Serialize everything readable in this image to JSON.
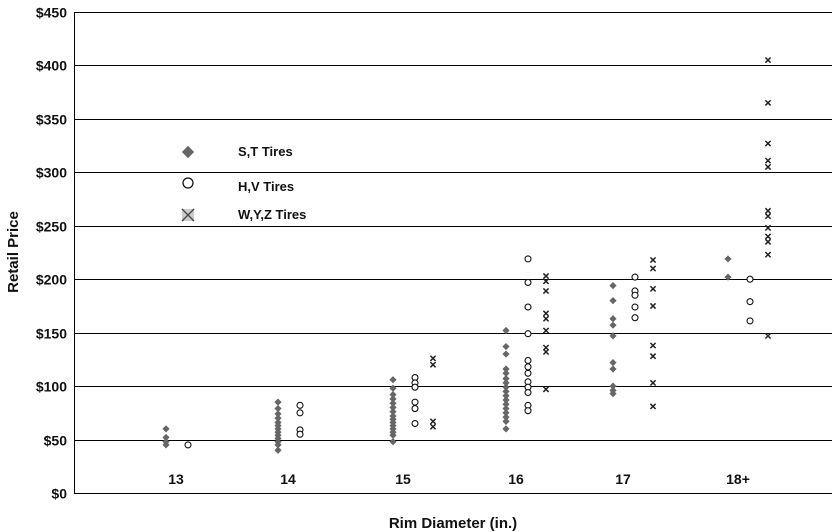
{
  "chart_data": {
    "type": "scatter",
    "title": "",
    "xlabel": "Rim Diameter (in.)",
    "ylabel": "Retail Price",
    "ylim": [
      0,
      450
    ],
    "yticks": [
      0,
      50,
      100,
      150,
      200,
      250,
      300,
      350,
      400,
      450
    ],
    "ytick_labels": [
      "$0",
      "$50",
      "$100",
      "$150",
      "$200",
      "$250",
      "$300",
      "$350",
      "$400",
      "$450"
    ],
    "categories": [
      "13",
      "14",
      "15",
      "16",
      "17",
      "18+"
    ],
    "grid": "horizontal",
    "legend_position": "upper-left",
    "colors": {
      "grid": "#000000",
      "diamond": "#666666",
      "circle": "#111111",
      "cross": "#222222"
    },
    "series": [
      {
        "name": "S,T Tires",
        "marker": "diamond",
        "points": [
          [
            "13",
            60
          ],
          [
            "13",
            52
          ],
          [
            "13",
            48
          ],
          [
            "13",
            45
          ],
          [
            "14",
            85
          ],
          [
            "14",
            79
          ],
          [
            "14",
            74
          ],
          [
            "14",
            70
          ],
          [
            "14",
            66
          ],
          [
            "14",
            63
          ],
          [
            "14",
            60
          ],
          [
            "14",
            57
          ],
          [
            "14",
            54
          ],
          [
            "14",
            51
          ],
          [
            "14",
            48
          ],
          [
            "14",
            45
          ],
          [
            "14",
            40
          ],
          [
            "15",
            106
          ],
          [
            "15",
            98
          ],
          [
            "15",
            92
          ],
          [
            "15",
            88
          ],
          [
            "15",
            84
          ],
          [
            "15",
            80
          ],
          [
            "15",
            76
          ],
          [
            "15",
            72
          ],
          [
            "15",
            69
          ],
          [
            "15",
            66
          ],
          [
            "15",
            63
          ],
          [
            "15",
            60
          ],
          [
            "15",
            57
          ],
          [
            "15",
            54
          ],
          [
            "15",
            48
          ],
          [
            "16",
            152
          ],
          [
            "16",
            137
          ],
          [
            "16",
            130
          ],
          [
            "16",
            116
          ],
          [
            "16",
            112
          ],
          [
            "16",
            107
          ],
          [
            "16",
            103
          ],
          [
            "16",
            99
          ],
          [
            "16",
            95
          ],
          [
            "16",
            91
          ],
          [
            "16",
            87
          ],
          [
            "16",
            83
          ],
          [
            "16",
            79
          ],
          [
            "16",
            75
          ],
          [
            "16",
            71
          ],
          [
            "16",
            67
          ],
          [
            "16",
            60
          ],
          [
            "17",
            194
          ],
          [
            "17",
            180
          ],
          [
            "17",
            163
          ],
          [
            "17",
            157
          ],
          [
            "17",
            147
          ],
          [
            "17",
            122
          ],
          [
            "17",
            116
          ],
          [
            "17",
            100
          ],
          [
            "17",
            96
          ],
          [
            "17",
            93
          ],
          [
            "18+",
            219
          ],
          [
            "18+",
            202
          ]
        ]
      },
      {
        "name": "H,V Tires",
        "marker": "circle",
        "points": [
          [
            "13",
            45
          ],
          [
            "14",
            82
          ],
          [
            "14",
            75
          ],
          [
            "14",
            59
          ],
          [
            "14",
            55
          ],
          [
            "15",
            108
          ],
          [
            "15",
            103
          ],
          [
            "15",
            99
          ],
          [
            "15",
            85
          ],
          [
            "15",
            79
          ],
          [
            "15",
            65
          ],
          [
            "16",
            219
          ],
          [
            "16",
            197
          ],
          [
            "16",
            174
          ],
          [
            "16",
            149
          ],
          [
            "16",
            124
          ],
          [
            "16",
            118
          ],
          [
            "16",
            112
          ],
          [
            "16",
            104
          ],
          [
            "16",
            99
          ],
          [
            "16",
            94
          ],
          [
            "16",
            82
          ],
          [
            "16",
            77
          ],
          [
            "17",
            202
          ],
          [
            "17",
            189
          ],
          [
            "17",
            185
          ],
          [
            "17",
            174
          ],
          [
            "17",
            164
          ],
          [
            "18+",
            200
          ],
          [
            "18+",
            179
          ],
          [
            "18+",
            161
          ]
        ]
      },
      {
        "name": "W,Y,Z Tires",
        "marker": "cross",
        "points": [
          [
            "15",
            126
          ],
          [
            "15",
            120
          ],
          [
            "15",
            67
          ],
          [
            "15",
            62
          ],
          [
            "16",
            203
          ],
          [
            "16",
            198
          ],
          [
            "16",
            189
          ],
          [
            "16",
            168
          ],
          [
            "16",
            163
          ],
          [
            "16",
            152
          ],
          [
            "16",
            136
          ],
          [
            "16",
            132
          ],
          [
            "16",
            97
          ],
          [
            "17",
            218
          ],
          [
            "17",
            210
          ],
          [
            "17",
            191
          ],
          [
            "17",
            175
          ],
          [
            "17",
            138
          ],
          [
            "17",
            128
          ],
          [
            "17",
            103
          ],
          [
            "17",
            81
          ],
          [
            "18+",
            405
          ],
          [
            "18+",
            365
          ],
          [
            "18+",
            327
          ],
          [
            "18+",
            311
          ],
          [
            "18+",
            305
          ],
          [
            "18+",
            264
          ],
          [
            "18+",
            259
          ],
          [
            "18+",
            248
          ],
          [
            "18+",
            240
          ],
          [
            "18+",
            235
          ],
          [
            "18+",
            223
          ],
          [
            "18+",
            147
          ]
        ]
      }
    ]
  }
}
